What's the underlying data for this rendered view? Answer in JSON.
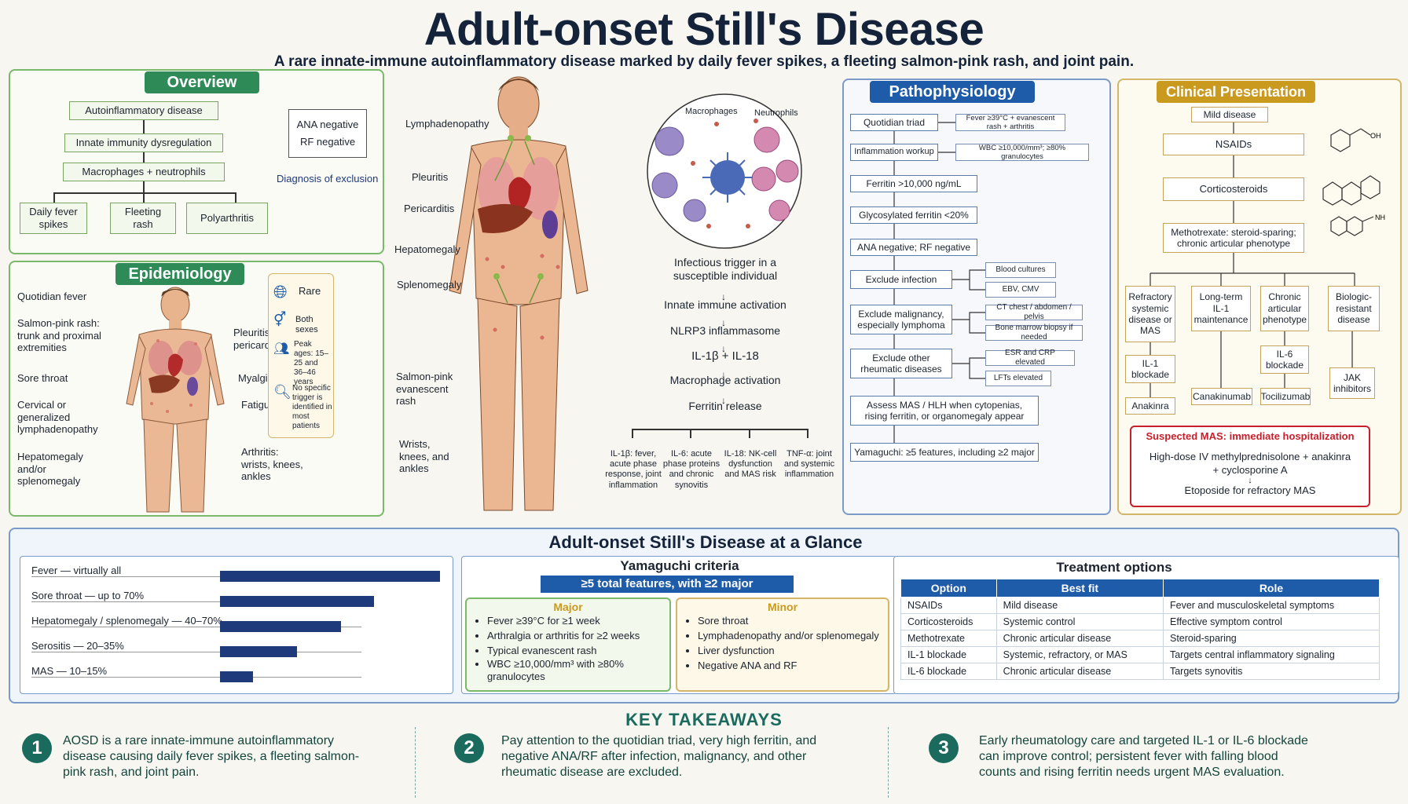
{
  "title": "Adult-onset Still's Disease",
  "subtitle": "A rare innate-immune autoinflammatory disease marked by daily fever spikes, a fleeting salmon-pink rash, and joint pain.",
  "overview": {
    "heading": "Overview",
    "flow": [
      "Autoinflammatory disease",
      "Innate immunity dysregulation",
      "Macrophages + neutrophils"
    ],
    "outcomes": [
      "Daily fever spikes",
      "Fleeting rash",
      "Polyarthritis"
    ],
    "ana": "ANA negative",
    "rf": "RF negative",
    "exclusion": "Diagnosis of exclusion"
  },
  "epidemiology": {
    "heading": "Epidemiology",
    "left_labels": [
      "Quotidian fever",
      "Salmon-pink rash: trunk and proximal extremities",
      "Sore throat",
      "Cervical or generalized lymphadenopathy",
      "Hepatomegaly and/or splenomegaly"
    ],
    "right_labels": [
      "Pleuritis or pericarditis",
      "Myalgias",
      "Fatigue",
      "Arthritis: wrists, knees, ankles"
    ],
    "facts": [
      "Rare",
      "Both sexes",
      "Peak ages: 15–25 and 36–46 years",
      "No specific trigger is identified in most patients"
    ]
  },
  "anatomy": {
    "labels": [
      "Lymphadenopathy",
      "Pleuritis",
      "Pericarditis",
      "Hepatomegaly",
      "Splenomegaly",
      "Salmon-pink evanescent rash",
      "Wrists, knees, and ankles"
    ]
  },
  "mechanism": {
    "cells": [
      "Macrophages",
      "Neutrophils"
    ],
    "steps": [
      "Infectious trigger in a susceptible individual",
      "Innate immune activation",
      "NLRP3 inflammasome",
      "IL-1β + IL-18",
      "Macrophage activation",
      "Ferritin release"
    ],
    "effects": [
      "IL-1β: fever, acute phase response, joint inflammation",
      "IL-6: acute phase proteins and chronic synovitis",
      "IL-18: NK-cell dysfunction and MAS risk",
      "TNF-α: joint and systemic inflammation"
    ]
  },
  "pathophysiology": {
    "heading": "Pathophysiology",
    "steps": [
      "Quotidian triad",
      "Inflammation workup",
      "Ferritin >10,000 ng/mL",
      "Glycosylated ferritin <20%",
      "ANA negative; RF negative",
      "Exclude infection",
      "Exclude malignancy, especially lymphoma",
      "Exclude other rheumatic diseases",
      "Assess MAS / HLH when cytopenias, rising ferritin, or organomegaly appear",
      "Yamaguchi: ≥5 features, including ≥2 major"
    ],
    "notes": [
      "Fever ≥39°C + evanescent rash + arthritis",
      "WBC ≥10,000/mm³; ≥80% granulocytes"
    ],
    "side": [
      "Blood cultures",
      "EBV, CMV",
      "CT chest / abdomen / pelvis",
      "Bone marrow biopsy if needed",
      "ESR and CRP elevated",
      "LFTs elevated"
    ]
  },
  "clinical": {
    "heading": "Clinical Presentation",
    "top": [
      "Mild disease",
      "NSAIDs",
      "Corticosteroids",
      "Methotrexate: steroid-sparing; chronic articular phenotype"
    ],
    "branches": [
      "Refractory systemic disease or MAS",
      "Long-term IL-1 maintenance",
      "Chronic articular phenotype",
      "Biologic-resistant disease"
    ],
    "mid": [
      "IL-1 blockade",
      "IL-6 blockade"
    ],
    "drugs": [
      "Anakinra",
      "Canakinumab",
      "Tocilizumab",
      "JAK inhibitors"
    ],
    "mas_title": "Suspected MAS: immediate hospitalization",
    "mas_line1": "High-dose IV methylprednisolone + anakinra + cyclosporine A",
    "mas_line2": "Etoposide for refractory MAS"
  },
  "glance": {
    "heading": "Adult-onset Still's Disease at a Glance",
    "bars": [
      {
        "label": "Fever — virtually all",
        "value": 100
      },
      {
        "label": "Sore throat — up to 70%",
        "value": 70
      },
      {
        "label": "Hepatomegaly / splenomegaly — 40–70%",
        "value": 55
      },
      {
        "label": "Serositis — 20–35%",
        "value": 35
      },
      {
        "label": "MAS — 10–15%",
        "value": 15
      }
    ],
    "yamaguchi": {
      "heading": "Yamaguchi criteria",
      "banner": "≥5 total features, with ≥2 major",
      "major_heading": "Major",
      "major": [
        "Fever ≥39°C for ≥1 week",
        "Arthralgia or arthritis for ≥2 weeks",
        "Typical evanescent rash",
        "WBC ≥10,000/mm³ with ≥80% granulocytes"
      ],
      "minor_heading": "Minor",
      "minor": [
        "Sore throat",
        "Lymphadenopathy and/or splenomegaly",
        "Liver dysfunction",
        "Negative ANA and RF"
      ]
    },
    "treatment": {
      "heading": "Treatment options",
      "columns": [
        "Option",
        "Best fit",
        "Role"
      ],
      "rows": [
        [
          "NSAIDs",
          "Mild disease",
          "Fever and musculoskeletal symptoms"
        ],
        [
          "Corticosteroids",
          "Systemic control",
          "Effective symptom control"
        ],
        [
          "Methotrexate",
          "Chronic articular disease",
          "Steroid-sparing"
        ],
        [
          "IL-1 blockade",
          "Systemic, refractory, or MAS",
          "Targets central inflammatory signaling"
        ],
        [
          "IL-6 blockade",
          "Chronic articular disease",
          "Targets synovitis"
        ]
      ]
    }
  },
  "takeaways": {
    "heading": "KEY TAKEAWAYS",
    "items": [
      {
        "num": "1",
        "text": "AOSD is a rare innate-immune autoinflammatory disease causing daily fever spikes, a fleeting salmon-pink rash, and joint pain."
      },
      {
        "num": "2",
        "text": "Pay attention to the quotidian triad, very high ferritin, and negative ANA/RF after infection, malignancy, and other rheumatic disease are excluded."
      },
      {
        "num": "3",
        "text": "Early rheumatology care and targeted IL-1 or IL-6 blockade can improve control; persistent fever with falling blood counts and rising ferritin needs urgent MAS evaluation."
      }
    ]
  },
  "colors": {
    "overview": "#2e8b57",
    "pathophysiology": "#1e5ba8",
    "clinical": "#c99a1e",
    "mas": "#c8202a",
    "takeaway": "#1a6b5e"
  }
}
